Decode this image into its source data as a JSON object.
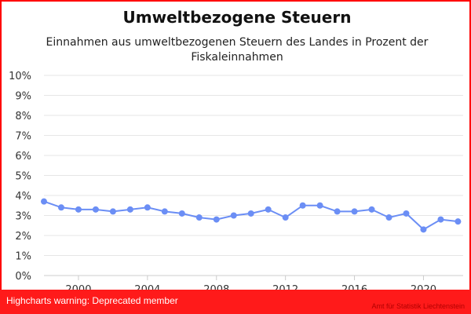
{
  "chart_data": {
    "type": "line",
    "title": "Umweltbezogene Steuern",
    "subtitle": "Einnahmen aus umweltbezogenen Steuern des Landes in Prozent der Fiskaleinnahmen",
    "xlabel": "",
    "ylabel": "",
    "x": [
      1998,
      1999,
      2000,
      2001,
      2002,
      2003,
      2004,
      2005,
      2006,
      2007,
      2008,
      2009,
      2010,
      2011,
      2012,
      2013,
      2014,
      2015,
      2016,
      2017,
      2018,
      2019,
      2020,
      2021,
      2022
    ],
    "series": [
      {
        "name": "",
        "values": [
          3.7,
          3.4,
          3.3,
          3.3,
          3.2,
          3.3,
          3.4,
          3.2,
          3.1,
          2.9,
          2.8,
          3.0,
          3.1,
          3.3,
          2.9,
          3.5,
          3.5,
          3.2,
          3.2,
          3.3,
          2.9,
          3.1,
          2.3,
          2.8,
          2.7
        ]
      }
    ],
    "ylim": [
      0,
      10
    ],
    "yticks": [
      "0%",
      "1%",
      "2%",
      "3%",
      "4%",
      "5%",
      "6%",
      "7%",
      "8%",
      "9%",
      "10%"
    ],
    "xticks": [
      "2000",
      "2004",
      "2008",
      "2012",
      "2016",
      "2020"
    ],
    "grid": true,
    "legend": "none",
    "line_color": "#6b8ef5"
  },
  "warning": "Highcharts warning: Deprecated member",
  "credits": "Amt für Statistik Liechtenstein"
}
